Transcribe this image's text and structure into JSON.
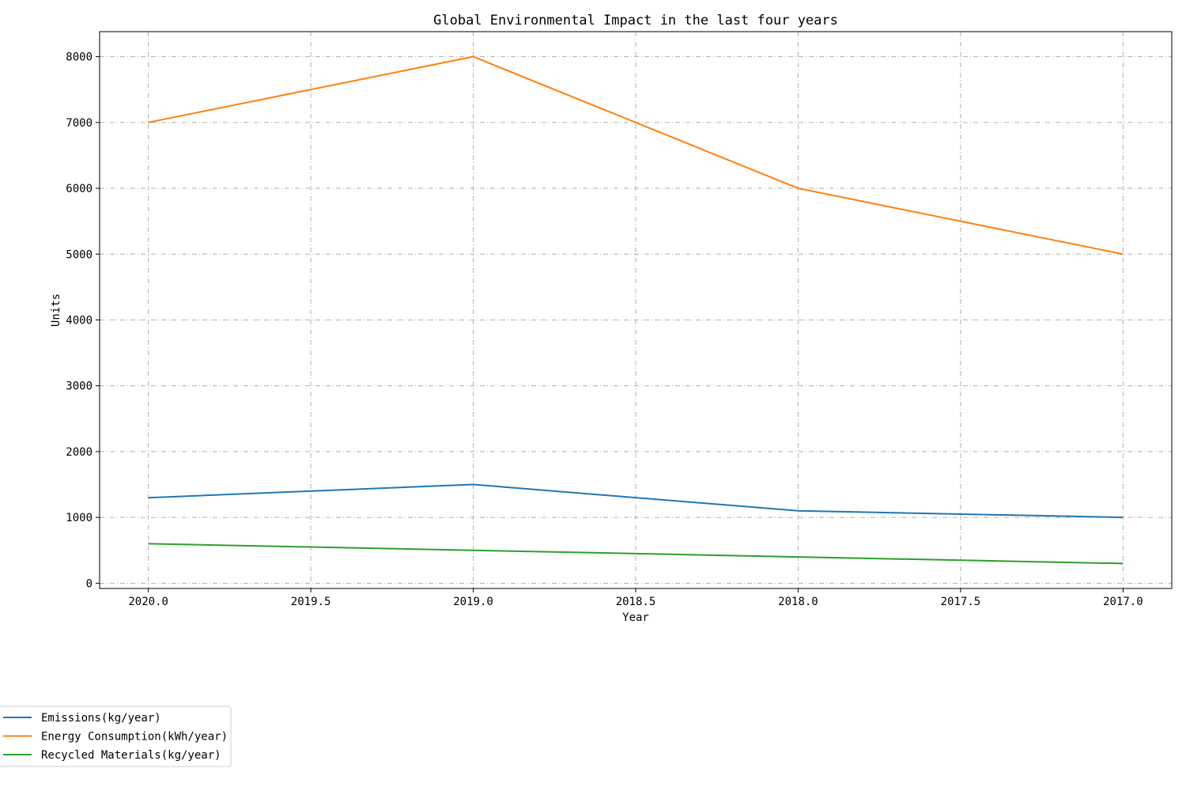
{
  "chart_data": {
    "type": "line",
    "title": "Global Environmental Impact in the last four years",
    "xlabel": "Year",
    "ylabel": "Units",
    "x_axis_inverted": true,
    "xlim": [
      2020.15,
      2016.85
    ],
    "ylim": [
      -80,
      8380
    ],
    "x_ticks": [
      2020.0,
      2019.5,
      2019.0,
      2018.5,
      2018.0,
      2017.5,
      2017.0
    ],
    "x_tick_labels": [
      "2020.0",
      "2019.5",
      "2019.0",
      "2018.5",
      "2018.0",
      "2017.5",
      "2017.0"
    ],
    "y_ticks": [
      0,
      1000,
      2000,
      3000,
      4000,
      5000,
      6000,
      7000,
      8000
    ],
    "y_tick_labels": [
      "0",
      "1000",
      "2000",
      "3000",
      "4000",
      "5000",
      "6000",
      "7000",
      "8000"
    ],
    "x": [
      2020,
      2019,
      2018,
      2017
    ],
    "series": [
      {
        "name": "Emissions(kg/year)",
        "color": "#1f77b4",
        "values": [
          1300,
          1500,
          1100,
          1000
        ]
      },
      {
        "name": "Energy Consumption(kWh/year)",
        "color": "#ff7f0e",
        "values": [
          7000,
          8000,
          6000,
          5000
        ]
      },
      {
        "name": "Recycled Materials(kg/year)",
        "color": "#2ca02c",
        "values": [
          600,
          500,
          400,
          300
        ]
      }
    ],
    "grid": true,
    "legend_position": "bottom-left"
  }
}
